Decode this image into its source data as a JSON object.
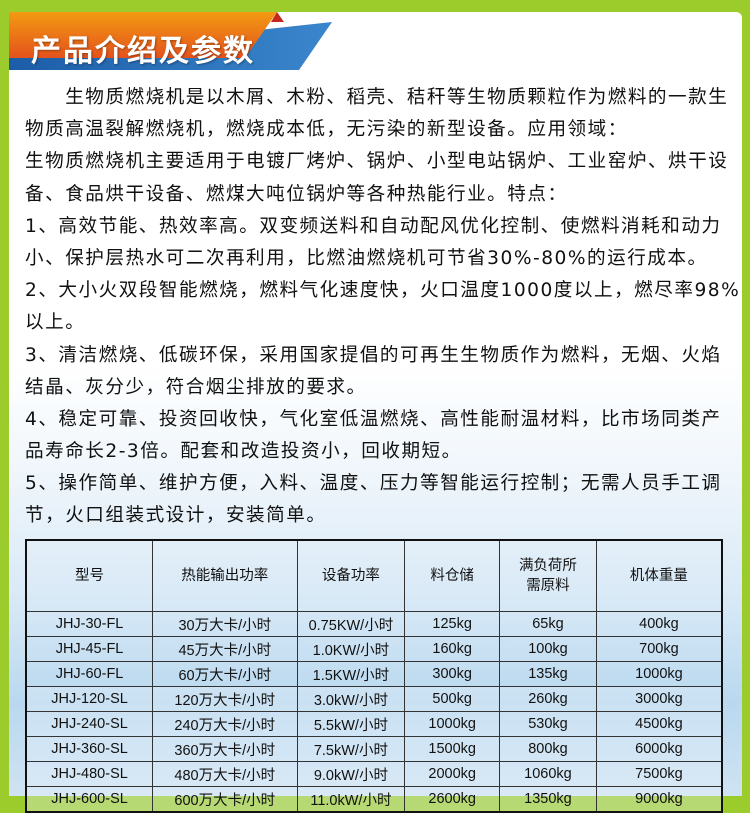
{
  "title": "产品介绍及参数",
  "colors": {
    "frame": "#9ccb2c",
    "banner_orange": "#ee6a1a",
    "banner_blue": "#2a78c2"
  },
  "lines": [
    "　　生物质燃烧机是以木屑、木粉、稻壳、秸秆等生物质颗粒作为燃料的一款生",
    "物质高温裂解燃烧机，燃烧成本低，无污染的新型设备。应用领域：",
    "生物质燃烧机主要适用于电镀厂烤炉、锅炉、小型电站锅炉、工业窑炉、烘干设",
    "备、食品烘干设备、燃煤大吨位锅炉等各种热能行业。特点：",
    "1、高效节能、热效率高。双变频送料和自动配风优化控制、使燃料消耗和动力",
    "小、保护层热水可二次再利用，比燃油燃烧机可节省30%-80%的运行成本。",
    "2、大小火双段智能燃烧，燃料气化速度快，火口温度1000度以上，燃尽率98%",
    "以上。",
    "3、清洁燃烧、低碳环保，采用国家提倡的可再生生物质作为燃料，无烟、火焰",
    "结晶、灰分少，符合烟尘排放的要求。",
    "4、稳定可靠、投资回收快，气化室低温燃烧、高性能耐温材料，比市场同类产",
    "品寿命长2-3倍。配套和改造投资小，回收期短。",
    "5、操作简单、维护方便，入料、温度、压力等智能运行控制；无需人员手工调",
    "节，火口组装式设计，安装简单。"
  ],
  "table": {
    "headers": [
      "型号",
      "热能输出功率",
      "设备功率",
      "料仓储",
      "满负荷所需原料",
      "机体重量"
    ],
    "rows": [
      [
        "JHJ-30-FL",
        "30万大卡/小时",
        "0.75KW/小时",
        "125kg",
        "65kg",
        "400kg"
      ],
      [
        "JHJ-45-FL",
        "45万大卡/小时",
        "1.0KW/小时",
        "160kg",
        "100kg",
        "700kg"
      ],
      [
        "JHJ-60-FL",
        "60万大卡/小时",
        "1.5KW/小时",
        "300kg",
        "135kg",
        "1000kg"
      ],
      [
        "JHJ-120-SL",
        "120万大卡/小时",
        "3.0kW/小时",
        "500kg",
        "260kg",
        "3000kg"
      ],
      [
        "JHJ-240-SL",
        "240万大卡/小时",
        "5.5kW/小时",
        "1000kg",
        "530kg",
        "4500kg"
      ],
      [
        "JHJ-360-SL",
        "360万大卡/小时",
        "7.5kW/小时",
        "1500kg",
        "800kg",
        "6000kg"
      ],
      [
        "JHJ-480-SL",
        "480万大卡/小时",
        "9.0kW/小时",
        "2000kg",
        "1060kg",
        "7500kg"
      ],
      [
        "JHJ-600-SL",
        "600万大卡/小时",
        "11.0kW/小时",
        "2600kg",
        "1350kg",
        "9000kg"
      ]
    ]
  }
}
